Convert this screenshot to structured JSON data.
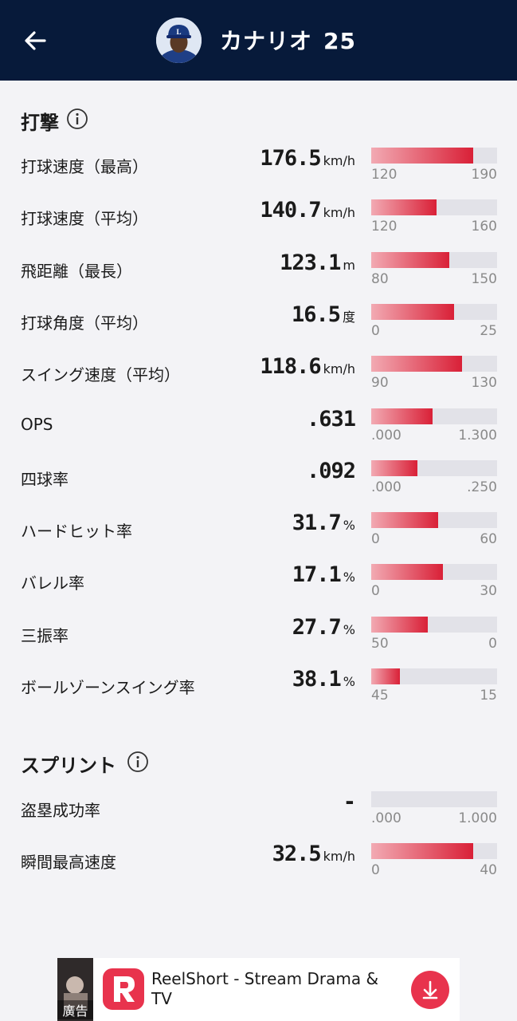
{
  "header": {
    "player_name": "カナリオ",
    "player_number": "25"
  },
  "colors": {
    "header_bg": "#071a3a",
    "bar_track": "#e2e2e8",
    "bar_fill_start": "#f2aab3",
    "bar_fill_end": "#d92037",
    "ad_accent": "#e8334d"
  },
  "batting": {
    "title": "打撃",
    "stats": [
      {
        "label": "打球速度（最高）",
        "value": "176.5",
        "unit": "km/h",
        "min": "120",
        "max": "190",
        "fill": 0.81
      },
      {
        "label": "打球速度（平均）",
        "value": "140.7",
        "unit": "km/h",
        "min": "120",
        "max": "160",
        "fill": 0.52
      },
      {
        "label": "飛距離（最長）",
        "value": "123.1",
        "unit": "m",
        "min": "80",
        "max": "150",
        "fill": 0.62
      },
      {
        "label": "打球角度（平均）",
        "value": "16.5",
        "unit": "度",
        "min": "0",
        "max": "25",
        "fill": 0.66
      },
      {
        "label": "スイング速度（平均）",
        "value": "118.6",
        "unit": "km/h",
        "min": "90",
        "max": "130",
        "fill": 0.72
      },
      {
        "label": "OPS",
        "value": ".631",
        "unit": "",
        "min": ".000",
        "max": "1.300",
        "fill": 0.49
      },
      {
        "label": "四球率",
        "value": ".092",
        "unit": "",
        "min": ".000",
        "max": ".250",
        "fill": 0.37
      },
      {
        "label": "ハードヒット率",
        "value": "31.7",
        "unit": "%",
        "min": "0",
        "max": "60",
        "fill": 0.53
      },
      {
        "label": "バレル率",
        "value": "17.1",
        "unit": "%",
        "min": "0",
        "max": "30",
        "fill": 0.57
      },
      {
        "label": "三振率",
        "value": "27.7",
        "unit": "%",
        "min": "50",
        "max": "0",
        "fill": 0.45
      },
      {
        "label": "ボールゾーンスイング率",
        "value": "38.1",
        "unit": "%",
        "min": "45",
        "max": "15",
        "fill": 0.23
      }
    ]
  },
  "sprint": {
    "title": "スプリント",
    "stats": [
      {
        "label": "盗塁成功率",
        "value": "-",
        "unit": "",
        "min": ".000",
        "max": "1.000",
        "fill": 0
      },
      {
        "label": "瞬間最高速度",
        "value": "32.5",
        "unit": "km/h",
        "min": "0",
        "max": "40",
        "fill": 0.81
      }
    ]
  },
  "ad": {
    "title": "ReelShort - Stream Drama & TV",
    "badge": "廣告",
    "icon": "download-icon"
  }
}
